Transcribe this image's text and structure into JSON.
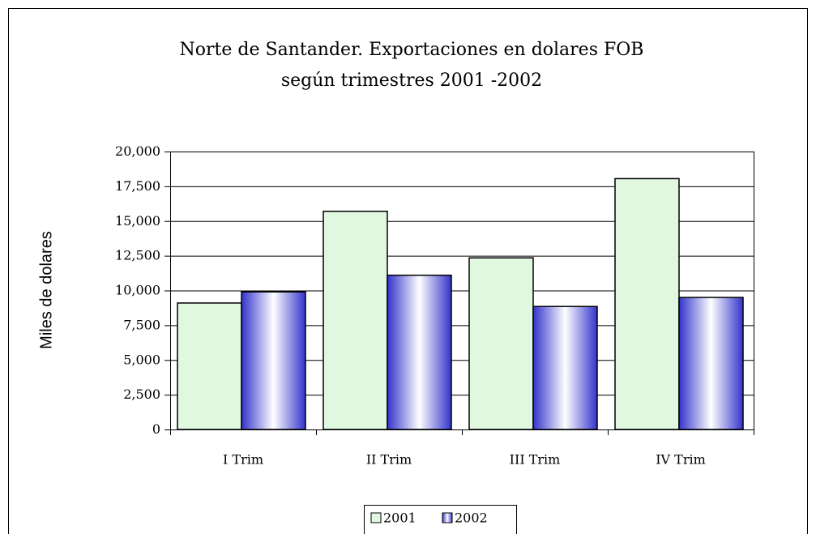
{
  "chart_data": {
    "type": "bar",
    "title": [
      "Norte de Santander. Exportaciones en dolares FOB",
      "según trimestres 2001 -2002"
    ],
    "y_label": "Miles de dolares",
    "categories": [
      "I Trim",
      "II Trim",
      "III Trim",
      "IV Trim"
    ],
    "series": [
      {
        "name": "2001",
        "color": "#e0f8e0",
        "values": [
          9100,
          15700,
          12350,
          18050
        ]
      },
      {
        "name": "2002",
        "color": "#3333cc",
        "values": [
          9900,
          11100,
          8850,
          9500
        ]
      }
    ],
    "ylim": [
      0,
      20000
    ],
    "yticks": [
      0,
      {
        "value": 2500,
        "label": "2,500"
      },
      {
        "value": 5000,
        "label": "5,000"
      },
      {
        "value": 7500,
        "label": "7,500"
      },
      {
        "value": 10000,
        "label": "10,000"
      },
      {
        "value": 12500,
        "label": "12,500"
      },
      {
        "value": 15000,
        "label": "15,000"
      },
      {
        "value": 17500,
        "label": "17,500"
      },
      {
        "value": 20000,
        "label": "20,000"
      }
    ],
    "grid": true,
    "legend": "bottom"
  }
}
